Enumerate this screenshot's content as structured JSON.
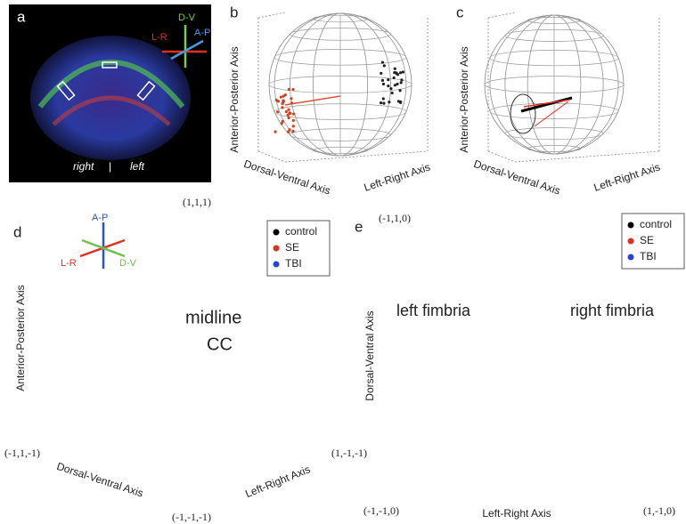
{
  "panel_a": {
    "letter": "a",
    "arrows": {
      "dv": "D-V",
      "ap": "A-P",
      "lr": "L-R"
    },
    "side_right": "right",
    "divider": "|",
    "side_left": "left"
  },
  "panel_b": {
    "letter": "b",
    "y_axis": "Anterior-Posterior Axis",
    "x_axis": "Dorsal-Ventral Axis",
    "z_axis": "Left-Right Axis"
  },
  "corner_111": "(1,1,1)",
  "panel_c": {
    "letter": "c",
    "y_axis": "Anterior-Posterior Axis",
    "x_axis": "Dorsal-Ventral Axis",
    "z_axis": "Left-Right Axis"
  },
  "panel_d": {
    "letter": "d",
    "arrows": {
      "ap": "A-P",
      "lr": "L-R",
      "dv": "D-V"
    },
    "legend": [
      "control",
      "SE",
      "TBI"
    ],
    "y_axis": "Anterior-Posterior Axis",
    "annotation_1": "midline",
    "annotation_2": "CC",
    "corner_left": "(-1,1,-1)",
    "x_axis": "Dorsal-Ventral Axis",
    "corner_bottom": "(-1,-1,-1)",
    "z_axis": "Left-Right Axis",
    "corner_right": "(1,-1,-1)"
  },
  "panel_e": {
    "letter": "e",
    "corner_top": "(-1,1,0)",
    "legend": [
      "control",
      "SE",
      "TBI"
    ],
    "y_axis": "Dorsal-Ventral Axis",
    "label_left": "left fimbria",
    "label_right": "right fimbria",
    "corner_bottom_left": "(-1,-1,0)",
    "x_axis": "Left-Right Axis",
    "corner_bottom_right": "(1,-1,0)"
  }
}
